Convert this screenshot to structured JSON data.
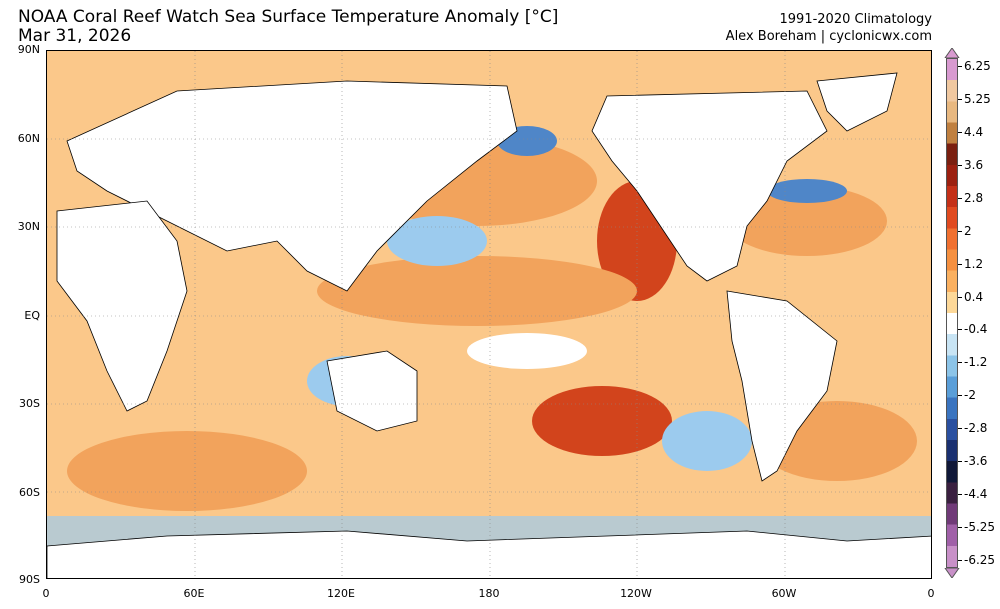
{
  "header": {
    "title": "NOAA Coral Reef Watch Sea Surface Temperature Anomaly [°C]",
    "date": "Mar 31, 2026",
    "climatology": "1991-2020 Climatology",
    "credit": "Alex Boreham | cyclonicwx.com"
  },
  "axes": {
    "lat_labels": [
      "90N",
      "60N",
      "30N",
      "EQ",
      "30S",
      "60S",
      "90S"
    ],
    "lon_labels": [
      "0",
      "60E",
      "120E",
      "180",
      "120W",
      "60W",
      "0"
    ]
  },
  "colorbar": {
    "labels": [
      "6.25",
      "5.25",
      "4.4",
      "3.6",
      "2.8",
      "2",
      "1.2",
      "0.4",
      "-0.4",
      "-1.2",
      "-2",
      "-2.8",
      "-3.6",
      "-4.4",
      "-5.25",
      "-6.25"
    ],
    "colors": [
      "#d89ad0",
      "#f0c8a0",
      "#e8b880",
      "#c08040",
      "#7a1f10",
      "#9c2010",
      "#c43018",
      "#e04a20",
      "#f07030",
      "#f59040",
      "#fab060",
      "#fdd898",
      "#ffffff",
      "#c8e4f4",
      "#8cc4e8",
      "#5a9ed8",
      "#3a74c0",
      "#2a50a0",
      "#1a3070",
      "#101838",
      "#3a2040",
      "#703a78",
      "#a060a8",
      "#c890c8"
    ]
  },
  "regions": {
    "warm": "#f2a35c",
    "hot": "#d2441c",
    "cool": "#9ccbee",
    "cold": "#4f86c8",
    "land": "#ffffff"
  }
}
